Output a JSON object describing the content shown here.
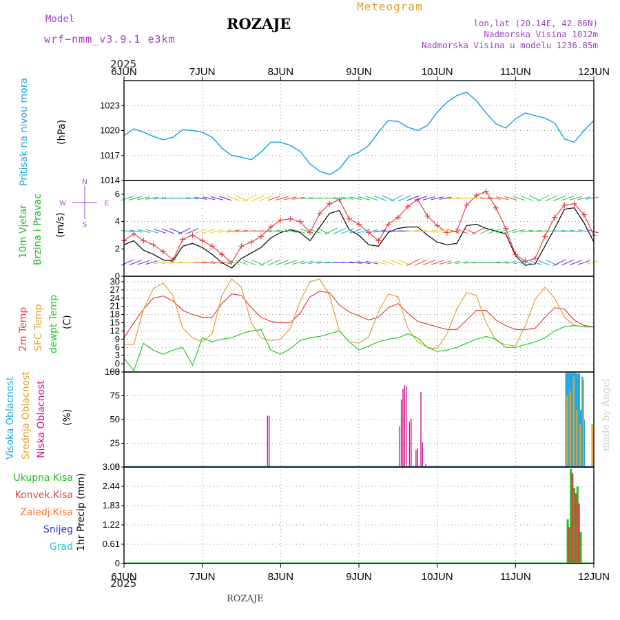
{
  "header": {
    "model_label": "Model",
    "model_name": "wrf−nmm_v3.9.1  e3km",
    "title": "ROZAJE",
    "product": "Meteogram",
    "coords": "lon,lat (20.14E, 42.86N)",
    "elevation": "Nadmorska Visina 1012m",
    "model_elevation": "Nadmorska Visina u modelu 1236.85m",
    "year_top": "2025",
    "year_bottom": "2025",
    "footer": "ROZAJE",
    "credit": "made by Angel"
  },
  "colors": {
    "pressure": "#1aa7e6",
    "wind_label": "#22bb22",
    "temp": "#e84040",
    "sfc_temp": "#e0a030",
    "dewpt": "#22cc22",
    "high_cloud": "#1aa7e6",
    "mid_cloud": "#e0a030",
    "low_cloud": "#cc1188",
    "total_precip": "#22bb22",
    "conv_precip": "#e04040",
    "snow": "#3030e0",
    "graupel": "#20c0c0",
    "frozen": "#ff7030",
    "compass": "#a040c0"
  },
  "chart_data": {
    "type": "line",
    "x_tick_labels": [
      "6JUN",
      "7JUN",
      "8JUN",
      "9JUN",
      "10JUN",
      "11JUN",
      "12JUN"
    ],
    "x_range_hours": [
      0,
      144
    ],
    "panels": [
      {
        "id": "pressure",
        "ylabel": [
          "Pritisak na nivou mora",
          "(hPa)"
        ],
        "ylim": [
          1014,
          1026
        ],
        "yticks": [
          "1014",
          "1017",
          "1020",
          "1023"
        ],
        "ytick_values": [
          1014,
          1017,
          1020,
          1023
        ],
        "series": [
          {
            "name": "MSLP",
            "x": [
              0,
              3,
              6,
              9,
              12,
              15,
              18,
              21,
              24,
              27,
              30,
              33,
              36,
              39,
              42,
              45,
              48,
              51,
              54,
              57,
              60,
              63,
              66,
              69,
              72,
              75,
              78,
              81,
              84,
              87,
              90,
              93,
              96,
              99,
              102,
              105,
              108,
              111,
              114,
              117,
              120,
              123,
              126,
              129,
              132,
              135,
              138,
              141,
              144
            ],
            "y": [
              1019.4,
              1020.2,
              1019.8,
              1019.3,
              1018.9,
              1019.2,
              1020.1,
              1020.0,
              1019.8,
              1019.2,
              1017.9,
              1017.0,
              1016.8,
              1016.5,
              1017.4,
              1018.6,
              1018.6,
              1018.2,
              1017.5,
              1016.0,
              1015.1,
              1014.7,
              1015.4,
              1016.9,
              1017.4,
              1018.2,
              1019.8,
              1021.2,
              1021.1,
              1020.4,
              1020.0,
              1020.6,
              1022.2,
              1023.4,
              1024.2,
              1024.6,
              1023.6,
              1022.1,
              1020.8,
              1020.3,
              1021.4,
              1022.1,
              1021.8,
              1021.5,
              1020.9,
              1019.0,
              1018.6,
              1020.0,
              1021.2
            ]
          }
        ]
      },
      {
        "id": "wind",
        "ylabel": [
          "10m Vjetar",
          "Brzina i Pravac",
          "(m/s)"
        ],
        "compass": [
          "N",
          "W",
          "E",
          "S"
        ],
        "ylim": [
          0,
          7
        ],
        "yticks": [
          "0",
          "2",
          "4",
          "6"
        ],
        "ytick_values": [
          0,
          2,
          4,
          6
        ],
        "series": [
          {
            "name": "Speed",
            "x": [
              0,
              3,
              6,
              9,
              12,
              15,
              18,
              21,
              24,
              27,
              30,
              33,
              36,
              39,
              42,
              45,
              48,
              51,
              54,
              57,
              60,
              63,
              66,
              69,
              72,
              75,
              78,
              81,
              84,
              87,
              90,
              93,
              96,
              99,
              102,
              105,
              108,
              111,
              114,
              117,
              120,
              123,
              126,
              129,
              132,
              135,
              138,
              141,
              144
            ],
            "y": [
              2.3,
              2.6,
              1.9,
              1.6,
              1.2,
              1.1,
              2.2,
              2.4,
              2.1,
              1.6,
              1.0,
              0.6,
              1.3,
              1.7,
              2.1,
              2.8,
              3.2,
              3.4,
              3.2,
              2.6,
              3.6,
              4.6,
              4.8,
              3.4,
              3.0,
              2.3,
              2.2,
              3.2,
              3.5,
              3.6,
              3.6,
              3.0,
              2.5,
              2.3,
              2.4,
              3.7,
              3.8,
              3.5,
              3.3,
              3.1,
              1.5,
              0.8,
              0.9,
              2.2,
              3.5,
              4.9,
              5.0,
              3.9,
              2.5
            ]
          },
          {
            "name": "Gust",
            "x": [
              0,
              3,
              6,
              9,
              12,
              15,
              18,
              21,
              24,
              27,
              30,
              33,
              36,
              39,
              42,
              45,
              48,
              51,
              54,
              57,
              60,
              63,
              66,
              69,
              72,
              75,
              78,
              81,
              84,
              87,
              90,
              93,
              96,
              99,
              102,
              105,
              108,
              111,
              114,
              117,
              120,
              123,
              126,
              129,
              132,
              135,
              138,
              141,
              144
            ],
            "y": [
              2.6,
              3.1,
              2.6,
              2.3,
              1.8,
              1.2,
              2.7,
              3.0,
              2.6,
              2.2,
              1.6,
              1.0,
              2.2,
              2.5,
              2.9,
              3.6,
              4.1,
              4.2,
              4.0,
              3.2,
              4.6,
              5.3,
              5.6,
              4.2,
              3.8,
              3.2,
              2.6,
              3.8,
              4.3,
              5.1,
              5.6,
              4.4,
              3.7,
              3.2,
              3.3,
              5.2,
              5.9,
              6.2,
              5.0,
              3.5,
              1.6,
              1.1,
              1.3,
              2.9,
              4.3,
              5.2,
              5.3,
              4.5,
              3.0
            ]
          }
        ]
      },
      {
        "id": "temperature",
        "ylabel": [
          "2m Temp",
          "SFC Temp",
          "dewpt Temp",
          "(C)"
        ],
        "ylim": [
          -3,
          32
        ],
        "yticks": [
          "−3",
          "0",
          "3",
          "6",
          "9",
          "12",
          "15",
          "18",
          "21",
          "24",
          "27",
          "30"
        ],
        "ytick_values": [
          -3,
          0,
          3,
          6,
          9,
          12,
          15,
          18,
          21,
          24,
          27,
          30
        ],
        "series": [
          {
            "name": "2m Temp",
            "x": [
              0,
              3,
              6,
              9,
              12,
              15,
              18,
              21,
              24,
              27,
              30,
              33,
              36,
              39,
              42,
              45,
              48,
              51,
              54,
              57,
              60,
              63,
              66,
              69,
              72,
              75,
              78,
              81,
              84,
              87,
              90,
              93,
              96,
              99,
              102,
              105,
              108,
              111,
              114,
              117,
              120,
              123,
              126,
              129,
              132,
              135,
              138,
              141,
              144
            ],
            "y": [
              9.5,
              15.0,
              20.0,
              24.0,
              24.8,
              23.0,
              19.5,
              18.0,
              17.0,
              17.0,
              22.0,
              25.5,
              25.0,
              20.5,
              17.0,
              15.5,
              15.0,
              15.0,
              18.5,
              24.5,
              26.5,
              26.0,
              21.5,
              19.0,
              17.5,
              16.0,
              17.0,
              20.5,
              22.0,
              18.5,
              15.5,
              14.5,
              13.5,
              12.5,
              12.5,
              16.0,
              19.5,
              19.5,
              16.0,
              14.0,
              12.5,
              12.5,
              13.0,
              17.0,
              20.5,
              20.0,
              16.0,
              14.0,
              13.5
            ]
          },
          {
            "name": "SFC Temp",
            "x": [
              0,
              3,
              6,
              9,
              12,
              15,
              18,
              21,
              24,
              27,
              30,
              33,
              36,
              39,
              42,
              45,
              48,
              51,
              54,
              57,
              60,
              63,
              66,
              69,
              72,
              75,
              78,
              81,
              84,
              87,
              90,
              93,
              96,
              99,
              102,
              105,
              108,
              111,
              114,
              117,
              120,
              123,
              126,
              129,
              132,
              135,
              138,
              141,
              144
            ],
            "y": [
              7.0,
              7.0,
              20.0,
              27.5,
              29.5,
              25.0,
              13.0,
              9.5,
              8.0,
              11.0,
              25.0,
              31.0,
              28.0,
              15.0,
              9.5,
              8.5,
              9.0,
              13.0,
              23.0,
              30.0,
              31.0,
              25.0,
              12.0,
              8.0,
              7.5,
              10.0,
              19.0,
              25.5,
              24.5,
              13.0,
              8.0,
              6.0,
              5.5,
              11.0,
              20.0,
              26.0,
              25.0,
              15.0,
              8.5,
              7.0,
              6.5,
              14.0,
              23.5,
              28.0,
              24.0,
              17.0,
              14.0,
              13.5,
              13.5
            ]
          },
          {
            "name": "dewpt Temp",
            "x": [
              0,
              3,
              6,
              9,
              12,
              15,
              18,
              21,
              24,
              27,
              30,
              33,
              36,
              39,
              42,
              45,
              48,
              51,
              54,
              57,
              60,
              63,
              66,
              69,
              72,
              75,
              78,
              81,
              84,
              87,
              90,
              93,
              96,
              99,
              102,
              105,
              108,
              111,
              114,
              117,
              120,
              123,
              126,
              129,
              132,
              135,
              138,
              141,
              144
            ],
            "y": [
              2.0,
              -2.5,
              7.5,
              5.0,
              3.5,
              5.0,
              6.0,
              -0.5,
              9.5,
              8.0,
              9.0,
              9.5,
              11.0,
              12.0,
              12.5,
              5.0,
              3.5,
              5.5,
              8.5,
              9.5,
              10.0,
              11.0,
              12.0,
              8.0,
              5.0,
              6.5,
              8.0,
              9.0,
              9.5,
              11.0,
              9.5,
              6.0,
              4.5,
              5.0,
              6.0,
              7.5,
              9.0,
              10.0,
              9.0,
              6.0,
              6.0,
              7.0,
              8.0,
              9.5,
              12.0,
              13.5,
              14.0,
              13.5,
              13.5
            ]
          }
        ]
      },
      {
        "id": "clouds",
        "ylabel": [
          "Visoka Oblacnost",
          "Srednja Oblacnost",
          "Niska Oblacnost",
          "(%)"
        ],
        "ylim": [
          0,
          100
        ],
        "yticks": [
          "0",
          "25",
          "50",
          "75",
          "100"
        ],
        "ytick_values": [
          0,
          25,
          50,
          75,
          100
        ],
        "bars": [
          {
            "name": "Niska Oblacnost",
            "x": [
              44.0,
              44.5,
              84.5,
              85.0,
              85.5,
              86.0,
              86.5,
              87.5,
              88.0,
              89.5,
              90.0,
              91.0,
              91.5,
              92.5,
              139.5
            ],
            "y": [
              54,
              54,
              43,
              71,
              82,
              86,
              85,
              48,
              51,
              18,
              20,
              79,
              26,
              3,
              8
            ]
          },
          {
            "name": "Visoka Oblacnost",
            "x": [
              135.5,
              136.0,
              136.5,
              137.0,
              137.5,
              138.0,
              138.5,
              139.0,
              139.5,
              140.0,
              140.5,
              141.0
            ],
            "y": [
              99,
              99,
              99,
              99,
              99,
              99,
              99,
              98,
              99,
              60,
              95,
              50
            ]
          },
          {
            "name": "Srednja Oblacnost",
            "x": [
              135.8,
              136.8,
              137.8,
              138.8,
              139.8,
              140.8,
              143.5
            ],
            "y": [
              75,
              80,
              95,
              60,
              45,
              92,
              45
            ]
          }
        ]
      },
      {
        "id": "precip",
        "ylabel": [
          "1hr Precip (mm)"
        ],
        "legend": [
          "Ukupna  Kisa",
          "Konvek.Kisa",
          "Zaledj.Kisa",
          "Snijeg",
          "Grad"
        ],
        "ylim": [
          0,
          3.05
        ],
        "yticks": [
          "0",
          "0.61",
          "1.22",
          "1.83",
          "2.44",
          "3.05"
        ],
        "ytick_values": [
          0,
          0.61,
          1.22,
          1.83,
          2.44,
          3.05
        ],
        "bars": [
          {
            "name": "Ukupna Kisa",
            "x": [
              136.0,
              137.0,
              138.0,
              139.0,
              140.0
            ],
            "y": [
              1.4,
              2.99,
              2.39,
              2.44,
              1.0
            ]
          },
          {
            "name": "Konvek.Kisa",
            "x": [
              136.0,
              137.0,
              138.0,
              139.0
            ],
            "y": [
              1.15,
              2.85,
              2.22,
              1.9
            ]
          }
        ]
      }
    ]
  }
}
